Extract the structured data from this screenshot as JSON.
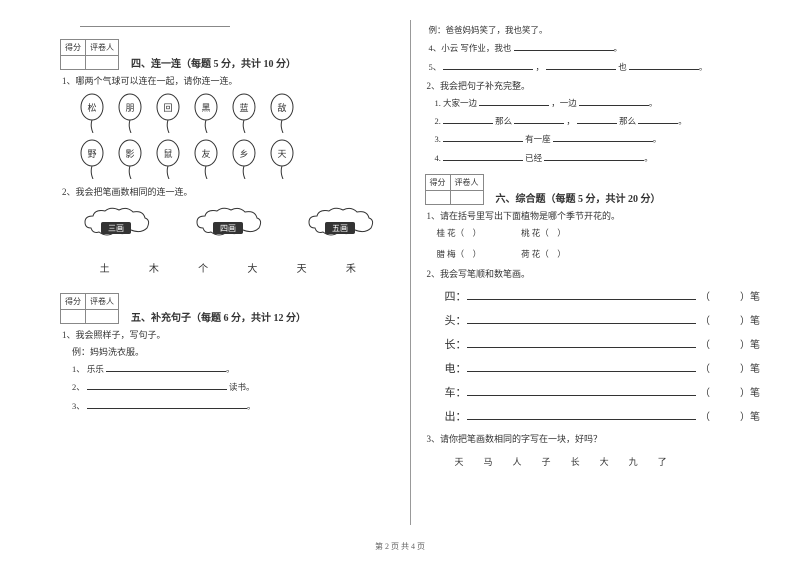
{
  "colors": {
    "text": "#333333",
    "line": "#888888",
    "bg": "#ffffff"
  },
  "footer": "第 2 页  共 4 页",
  "score_labels": {
    "score": "得分",
    "grader": "评卷人"
  },
  "left": {
    "section4": {
      "title": "四、连一连（每题 5 分，共计 10 分）",
      "q1": "1、哪两个气球可以连在一起，请你连一连。",
      "balloons_top": [
        "松",
        "朋",
        "回",
        "黑",
        "蓝",
        "敌"
      ],
      "balloons_bot": [
        "野",
        "影",
        "鼠",
        "友",
        "乡",
        "天"
      ],
      "q2": "2、我会把笔画数相同的连一连。",
      "cloud_labels": [
        "三画",
        "四画",
        "五画"
      ],
      "chars": [
        "土",
        "木",
        "个",
        "大",
        "天",
        "禾"
      ]
    },
    "section5": {
      "title": "五、补充句子（每题 6 分，共计 12 分）",
      "q1": "1、我会照样子，写句子。",
      "example": "例：妈妈洗衣服。",
      "items": [
        {
          "n": "1、",
          "lead": "乐乐"
        },
        {
          "n": "2、",
          "lead": "",
          "tail": "读书。"
        },
        {
          "n": "3、",
          "lead": ""
        }
      ]
    }
  },
  "right": {
    "top_example": "例：爸爸妈妈笑了，我也笑了。",
    "top_q4": "4、小云  写作业，我也",
    "top_q5": "5、",
    "top_q5_mid": "，",
    "top_q5_tail": "也",
    "q2_intro": "2、我会把句子补充完整。",
    "q2_items": [
      {
        "n": "1.",
        "a": "大家一边",
        "b": "，一边"
      },
      {
        "n": "2.",
        "a": "",
        "b": "那么",
        "c": "，",
        "d": "那么"
      },
      {
        "n": "3.",
        "a": "",
        "b": "有一座"
      },
      {
        "n": "4.",
        "a": "",
        "b": "已经"
      }
    ],
    "section6": {
      "title": "六、综合题（每题 5 分，共计 20 分）",
      "q1": "1、请在括号里写出下面植物是哪个季节开花的。",
      "q1_row1": [
        "桂 花（",
        "）",
        "桃  花（",
        "）"
      ],
      "q1_row2": [
        "腊 梅（",
        "）",
        "荷  花（",
        "）"
      ],
      "q2": "2、我会写笔顺和数笔画。",
      "q2_chars": [
        "四",
        "头",
        "长",
        "电",
        "车",
        "出"
      ],
      "q2_tail_left": "（",
      "q2_tail_right": "）笔",
      "q3": "3、请你把笔画数相同的字写在一块，好吗？",
      "q3_chars": [
        "天",
        "马",
        "人",
        "子",
        "长",
        "大",
        "九",
        "了"
      ]
    }
  }
}
